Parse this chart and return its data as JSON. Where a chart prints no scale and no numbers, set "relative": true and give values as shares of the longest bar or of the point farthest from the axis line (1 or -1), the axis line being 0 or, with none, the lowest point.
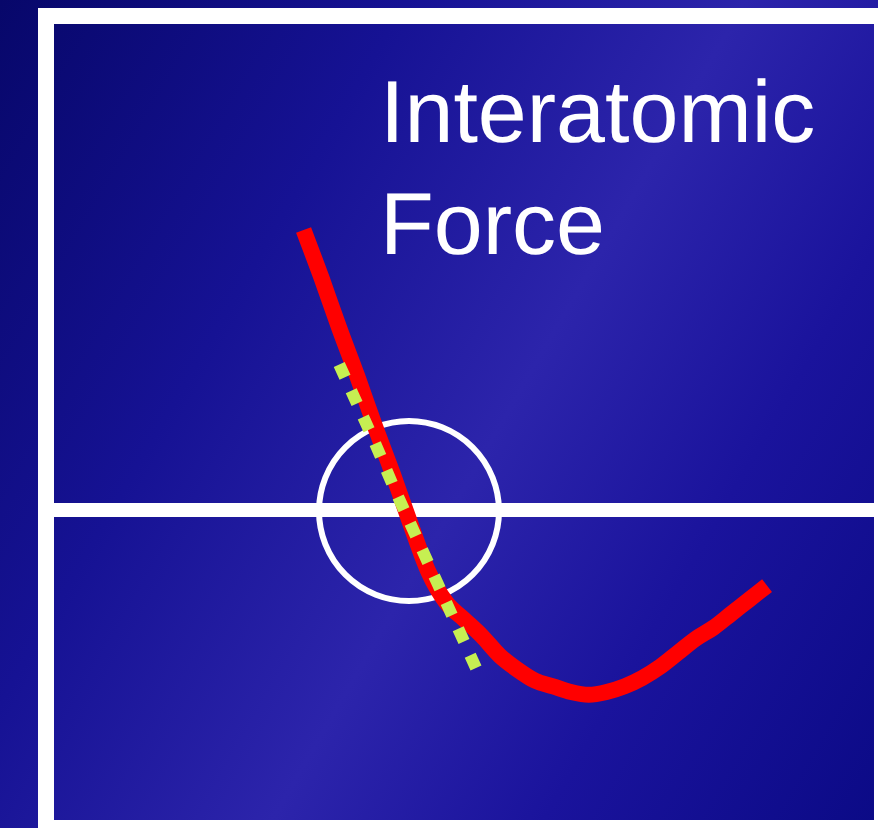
{
  "chart_data": {
    "type": "line",
    "title": "Interatomic Force",
    "relative": true,
    "marker": "none",
    "categories": [
      null,
      null,
      null,
      null,
      null,
      null,
      null,
      null,
      null,
      null,
      null,
      null,
      null,
      null,
      null,
      null,
      null,
      null,
      null,
      null,
      null,
      null,
      null,
      null,
      null,
      null,
      null,
      null,
      null,
      null,
      null,
      null,
      null,
      null,
      null,
      null,
      null,
      null,
      null,
      null,
      null,
      null,
      null,
      null,
      null,
      null,
      null
    ],
    "series": [
      {
        "color": "#ff0000",
        "values": [
          null,
          null,
          null,
          null,
          null,
          null,
          null,
          null,
          null,
          null,
          null,
          null,
          null,
          null,
          1,
          0.83,
          0.65,
          0.48,
          0.3,
          0.13,
          -0.05,
          -0.22,
          -0.33,
          -0.39,
          -0.45,
          -0.52,
          -0.57,
          -0.61,
          -0.63,
          -0.65,
          -0.66,
          -0.65,
          -0.63,
          -0.6,
          -0.56,
          -0.51,
          -0.46,
          -0.42,
          -0.37,
          -0.32,
          -0.27,
          null,
          null,
          null,
          null,
          null,
          null
        ]
      },
      {
        "color": "#c6ef52",
        "line_style": "dotted",
        "values": [
          null,
          null,
          null,
          null,
          null,
          null,
          null,
          null,
          null,
          null,
          null,
          null,
          null,
          null,
          null,
          null,
          0.52,
          0.38,
          0.24,
          0.09,
          -0.05,
          -0.19,
          -0.33,
          -0.47,
          -0.61,
          null,
          null,
          null,
          null,
          null,
          null,
          null,
          null,
          null,
          null,
          null,
          null,
          null,
          null,
          null,
          null,
          null,
          null,
          null,
          null,
          null,
          null
        ]
      }
    ]
  }
}
